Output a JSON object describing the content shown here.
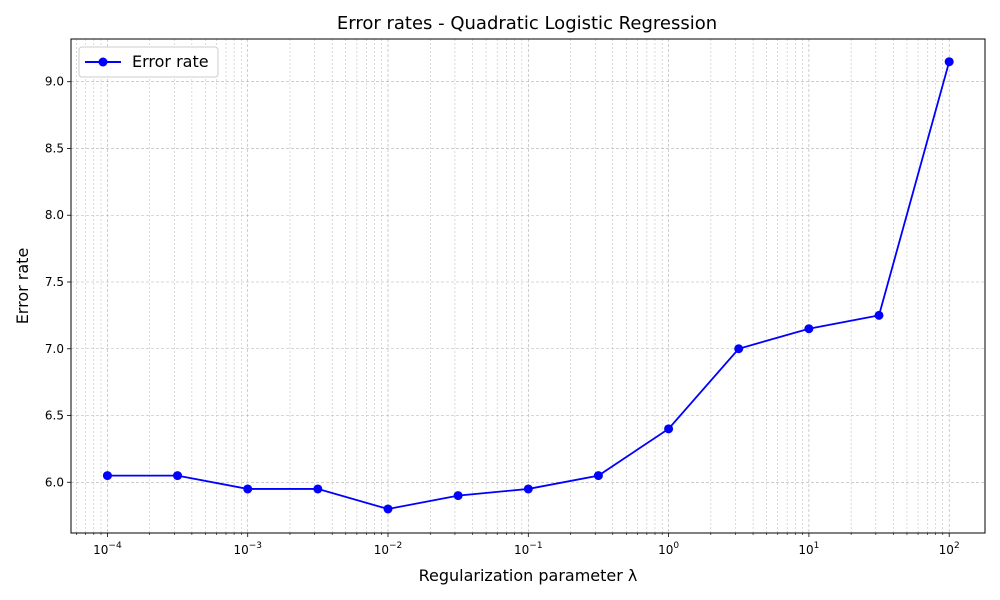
{
  "chart_data": {
    "type": "line",
    "title": "Error rates - Quadratic Logistic Regression",
    "xlabel": "Regularization parameter λ",
    "ylabel": "Error rate",
    "x_scale": "log",
    "xlim": [
      5.5e-05,
      180
    ],
    "ylim": [
      5.62,
      9.32
    ],
    "x_ticks": [
      {
        "value": 0.0001,
        "base": "10",
        "exp": "−4"
      },
      {
        "value": 0.001,
        "base": "10",
        "exp": "−3"
      },
      {
        "value": 0.01,
        "base": "10",
        "exp": "−2"
      },
      {
        "value": 0.1,
        "base": "10",
        "exp": "−1"
      },
      {
        "value": 1,
        "base": "10",
        "exp": "0"
      },
      {
        "value": 10,
        "base": "10",
        "exp": "1"
      },
      {
        "value": 100,
        "base": "10",
        "exp": "2"
      }
    ],
    "y_ticks": [
      {
        "value": 6.0,
        "label": "6.0"
      },
      {
        "value": 6.5,
        "label": "6.5"
      },
      {
        "value": 7.0,
        "label": "7.0"
      },
      {
        "value": 7.5,
        "label": "7.5"
      },
      {
        "value": 8.0,
        "label": "8.0"
      },
      {
        "value": 8.5,
        "label": "8.5"
      },
      {
        "value": 9.0,
        "label": "9.0"
      }
    ],
    "grid": true,
    "legend_position": "upper-left",
    "series": [
      {
        "name": "Error rate",
        "color": "#0000ff",
        "marker": "circle",
        "x": [
          0.0001,
          0.000316,
          0.001,
          0.00316,
          0.01,
          0.0316,
          0.1,
          0.316,
          1,
          3.16,
          10,
          31.6,
          100
        ],
        "y": [
          6.05,
          6.05,
          5.95,
          5.95,
          5.8,
          5.9,
          5.95,
          6.05,
          6.4,
          7.0,
          7.15,
          7.25,
          9.15
        ]
      }
    ]
  }
}
